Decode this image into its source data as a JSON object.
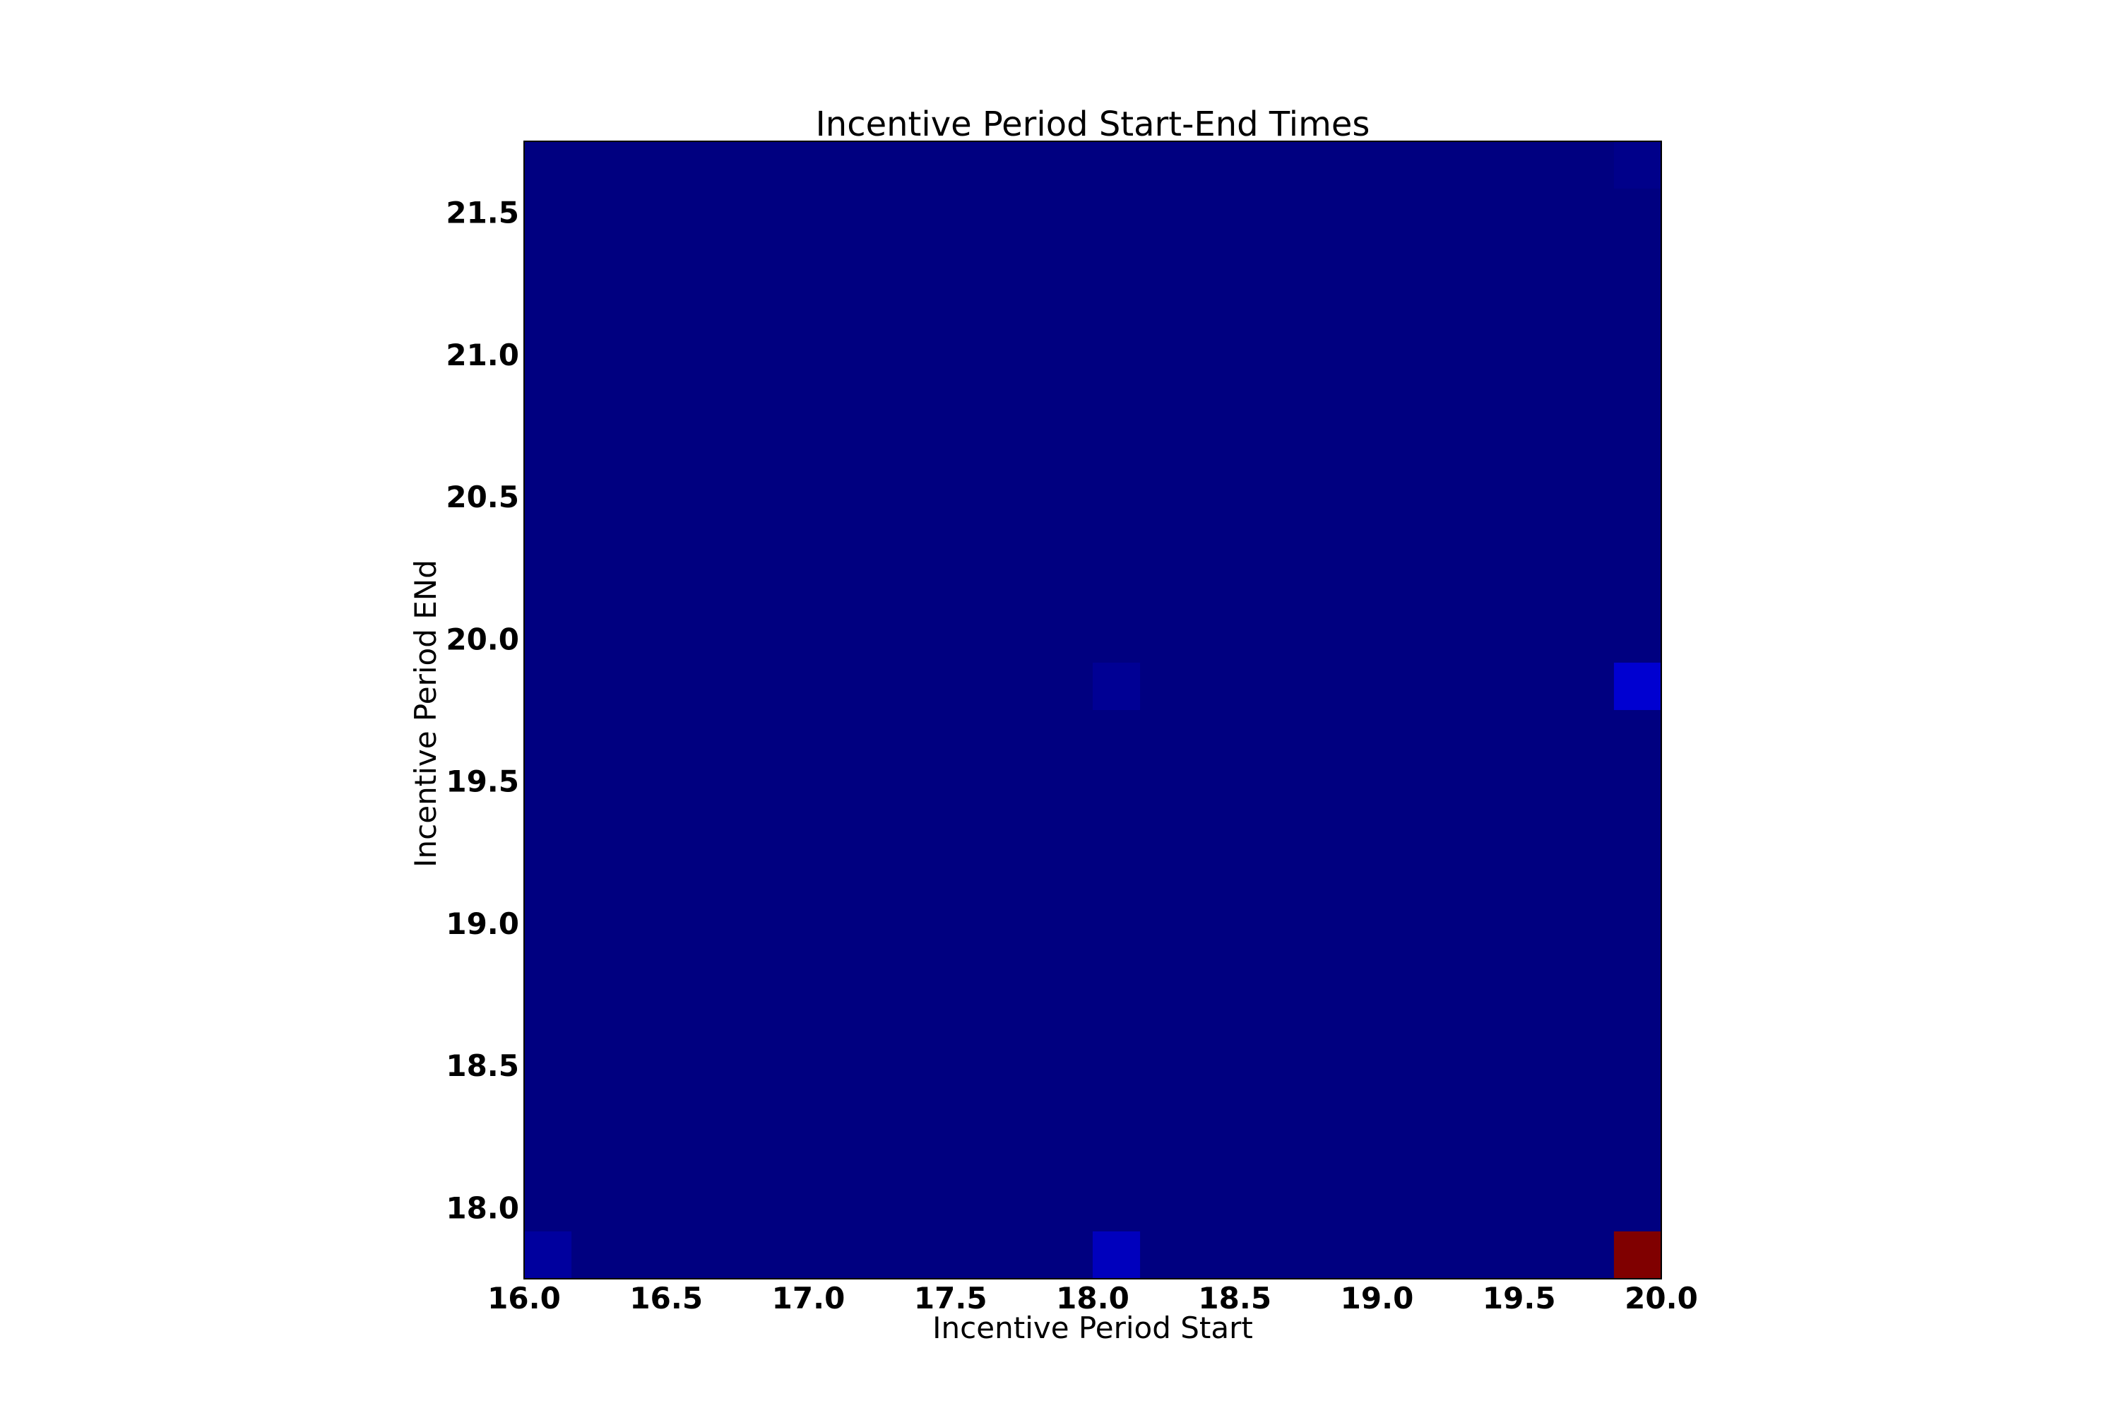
{
  "chart_data": {
    "type": "heatmap",
    "title": "Incentive Period Start-End Times",
    "xlabel": "Incentive Period Start",
    "ylabel": "Incentive Period ENd",
    "xlim": [
      16.0,
      20.0
    ],
    "ylim": [
      17.75,
      21.75
    ],
    "x_ticks": [
      "16.0",
      "16.5",
      "17.0",
      "17.5",
      "18.0",
      "18.5",
      "19.0",
      "19.5",
      "20.0"
    ],
    "y_ticks": [
      "18.0",
      "18.5",
      "19.0",
      "19.5",
      "20.0",
      "20.5",
      "21.0",
      "21.5"
    ],
    "x_tick_values": [
      16.0,
      16.5,
      17.0,
      17.5,
      18.0,
      18.5,
      19.0,
      19.5,
      20.0
    ],
    "y_tick_values": [
      18.0,
      18.5,
      19.0,
      19.5,
      20.0,
      20.5,
      21.0,
      21.5
    ],
    "colormap": "jet",
    "base_color": "#000080",
    "cell_size": [
      0.1667,
      0.1667
    ],
    "highlight_cells": [
      {
        "x": 16.0833,
        "y": 17.8333,
        "level": 0.03
      },
      {
        "x": 18.0833,
        "y": 17.8333,
        "level": 0.06
      },
      {
        "x": 19.9167,
        "y": 17.8333,
        "level": 1.0
      },
      {
        "x": 18.0833,
        "y": 19.8333,
        "level": 0.02
      },
      {
        "x": 19.9167,
        "y": 19.8333,
        "level": 0.08
      },
      {
        "x": 19.9167,
        "y": 21.6667,
        "level": 0.01
      }
    ],
    "grid": false,
    "legend": "none"
  }
}
